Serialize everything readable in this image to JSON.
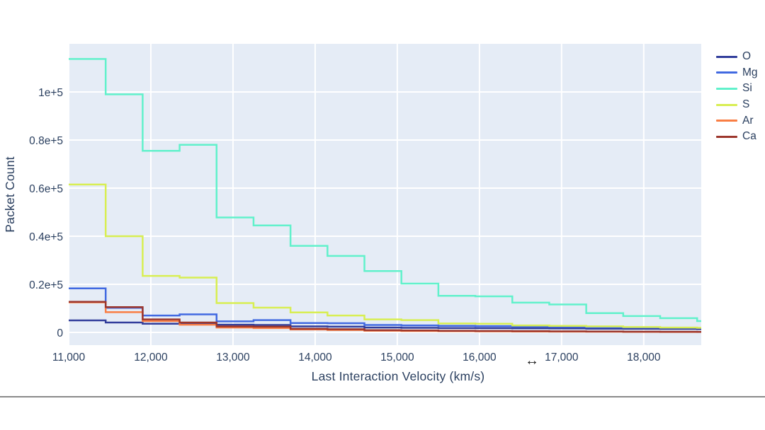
{
  "page": {
    "background": "#ffffff",
    "divider_color": "#8a8a8a"
  },
  "cursor": {
    "glyph": "↔"
  },
  "chart_data": {
    "type": "line",
    "line_shape": "step-post-histogram",
    "title": "",
    "xlabel": "Last Interaction Velocity (km/s)",
    "ylabel": "Packet Count",
    "xlim": [
      11000,
      18700
    ],
    "ylim": [
      -5300,
      120000
    ],
    "grid": true,
    "legend_position": "right",
    "colors": {
      "plot_bg": "#e5ecf6",
      "grid": "#ffffff",
      "text": "#2a3f5f"
    },
    "x_ticks": {
      "values": [
        11000,
        12000,
        13000,
        14000,
        15000,
        16000,
        17000,
        18000
      ],
      "labels": [
        "11,000",
        "12,000",
        "13,000",
        "14,000",
        "15,000",
        "16,000",
        "17,000",
        "18,000"
      ]
    },
    "y_ticks": {
      "values": [
        0,
        20000,
        40000,
        60000,
        80000,
        100000
      ],
      "labels": [
        "0",
        "0.2e+5",
        "0.4e+5",
        "0.6e+5",
        "0.8e+5",
        "1e+5"
      ]
    },
    "bin_edges": [
      11000,
      11450,
      11900,
      12350,
      12800,
      13250,
      13700,
      14150,
      14600,
      15050,
      15500,
      15950,
      16400,
      16850,
      17300,
      17750,
      18200,
      18650,
      19100
    ],
    "series": [
      {
        "name": "O",
        "color": "#313d9b",
        "values": [
          5000,
          4100,
          3600,
          3800,
          3200,
          3100,
          2500,
          2400,
          2000,
          1900,
          1800,
          1750,
          1700,
          1650,
          1550,
          1500,
          1450,
          1400
        ]
      },
      {
        "name": "Mg",
        "color": "#4169e1",
        "values": [
          18300,
          10200,
          7000,
          7500,
          4600,
          5100,
          3900,
          3800,
          3100,
          2900,
          2700,
          2600,
          2400,
          2300,
          2100,
          2000,
          1900,
          1850
        ]
      },
      {
        "name": "Si",
        "color": "#61f1cb",
        "values": [
          113700,
          99000,
          75500,
          78000,
          47800,
          44500,
          36000,
          31800,
          25500,
          20300,
          15200,
          15000,
          12400,
          11600,
          8000,
          6800,
          5900,
          4700
        ]
      },
      {
        "name": "S",
        "color": "#d8ee52",
        "values": [
          61500,
          40000,
          23500,
          22800,
          12200,
          10300,
          8300,
          7000,
          5400,
          5100,
          3700,
          3600,
          2900,
          2700,
          2500,
          2250,
          2000,
          1900
        ]
      },
      {
        "name": "Ar",
        "color": "#f97e44",
        "values": [
          12500,
          8400,
          4700,
          3200,
          2000,
          1800,
          1200,
          1000,
          700,
          600,
          500,
          450,
          380,
          330,
          280,
          230,
          190,
          160
        ]
      },
      {
        "name": "Ca",
        "color": "#9c362c",
        "values": [
          12700,
          10500,
          5400,
          4100,
          2500,
          2400,
          1500,
          1300,
          900,
          800,
          650,
          600,
          500,
          450,
          350,
          300,
          250,
          220
        ]
      }
    ]
  }
}
